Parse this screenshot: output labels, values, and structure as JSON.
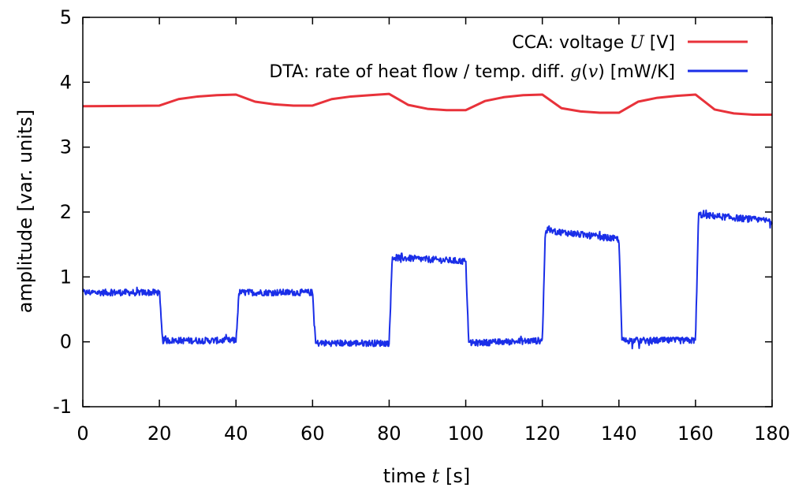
{
  "chart_data": {
    "type": "line",
    "xlabel_text": "time",
    "xlabel_var": "t",
    "xlabel_unit": "[s]",
    "ylabel": "amplitude [var. units]",
    "xlim": [
      0,
      180
    ],
    "ylim": [
      -1,
      5
    ],
    "x_ticks": [
      "0",
      "20",
      "40",
      "60",
      "80",
      "100",
      "120",
      "140",
      "160",
      "180"
    ],
    "y_ticks": [
      "-1",
      "0",
      "1",
      "2",
      "3",
      "4",
      "5"
    ],
    "grid": false,
    "legend_position": "top-right",
    "series": [
      {
        "name": "CCA: voltage U [V]",
        "legend_prefix": "CCA: voltage",
        "legend_var": "U",
        "legend_unit": "[V]",
        "color": "#e8323a",
        "x": [
          0,
          20,
          25,
          30,
          35,
          40,
          45,
          50,
          55,
          60,
          65,
          70,
          75,
          80,
          85,
          90,
          95,
          100,
          105,
          110,
          115,
          120,
          125,
          130,
          135,
          140,
          145,
          150,
          155,
          160,
          165,
          170,
          175,
          180
        ],
        "y": [
          3.63,
          3.64,
          3.74,
          3.78,
          3.8,
          3.81,
          3.7,
          3.66,
          3.64,
          3.64,
          3.74,
          3.78,
          3.8,
          3.82,
          3.65,
          3.59,
          3.57,
          3.57,
          3.71,
          3.77,
          3.8,
          3.81,
          3.6,
          3.55,
          3.53,
          3.53,
          3.7,
          3.76,
          3.79,
          3.81,
          3.58,
          3.52,
          3.5,
          3.5
        ]
      },
      {
        "name": "DTA: rate of heat flow / temp. diff. g(v) [mW/K]",
        "legend_prefix": "DTA: rate of heat flow / temp. diff.",
        "legend_var": "g",
        "legend_arg": "v",
        "legend_unit": "[mW/K]",
        "color": "#1a2ee8",
        "x": [
          0,
          20,
          20.8,
          40,
          40.8,
          60,
          60.8,
          80,
          80.8,
          100,
          100.8,
          120,
          120.8,
          140,
          140.8,
          160,
          160.8,
          180
        ],
        "y": [
          0.76,
          0.76,
          0.02,
          0.02,
          0.76,
          0.76,
          -0.02,
          -0.02,
          1.3,
          1.24,
          -0.02,
          0.02,
          1.72,
          1.58,
          0.02,
          0.02,
          1.96,
          1.86
        ],
        "noise_amplitude": 0.05
      }
    ]
  }
}
